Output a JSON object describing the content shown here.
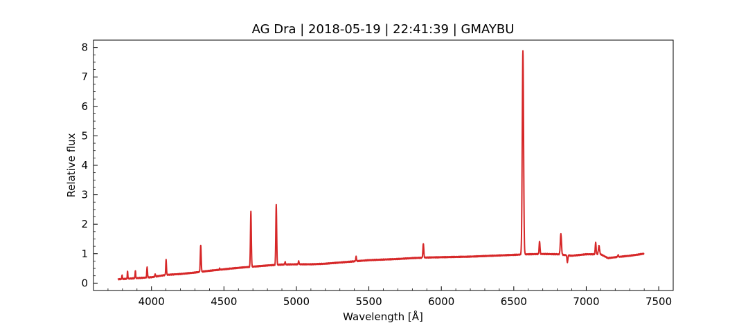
{
  "chart_data": {
    "type": "line",
    "title": "AG Dra | 2018-05-19 | 22:41:39 | GMAYBU",
    "xlabel": "Wavelength [Å]",
    "ylabel": "Relative flux",
    "xlim": [
      3600,
      7600
    ],
    "ylim": [
      -0.25,
      8.25
    ],
    "x_ticks": [
      4000,
      4500,
      5000,
      5500,
      6000,
      6500,
      7000,
      7500
    ],
    "y_ticks": [
      0,
      1,
      2,
      3,
      4,
      5,
      6,
      7,
      8
    ],
    "grid": false,
    "line_color": "#d62728",
    "series": [
      {
        "wavelength_range": [
          3770,
          7400
        ],
        "continuum": [
          [
            3770,
            0.13
          ],
          [
            3900,
            0.17
          ],
          [
            4000,
            0.2
          ],
          [
            4100,
            0.28
          ],
          [
            4200,
            0.31
          ],
          [
            4300,
            0.36
          ],
          [
            4400,
            0.42
          ],
          [
            4500,
            0.47
          ],
          [
            4600,
            0.52
          ],
          [
            4700,
            0.56
          ],
          [
            4800,
            0.6
          ],
          [
            4900,
            0.63
          ],
          [
            5000,
            0.64
          ],
          [
            5100,
            0.64
          ],
          [
            5200,
            0.66
          ],
          [
            5300,
            0.7
          ],
          [
            5400,
            0.74
          ],
          [
            5500,
            0.78
          ],
          [
            5600,
            0.8
          ],
          [
            5700,
            0.82
          ],
          [
            5800,
            0.85
          ],
          [
            5900,
            0.87
          ],
          [
            6000,
            0.88
          ],
          [
            6100,
            0.89
          ],
          [
            6200,
            0.9
          ],
          [
            6300,
            0.92
          ],
          [
            6400,
            0.94
          ],
          [
            6500,
            0.96
          ],
          [
            6600,
            0.98
          ],
          [
            6700,
            0.99
          ],
          [
            6800,
            0.98
          ],
          [
            6900,
            0.93
          ],
          [
            7000,
            0.98
          ],
          [
            7100,
            0.98
          ],
          [
            7150,
            0.85
          ],
          [
            7200,
            0.88
          ],
          [
            7300,
            0.93
          ],
          [
            7400,
            1.0
          ]
        ],
        "lines": [
          {
            "center": 3797,
            "peak": 0.28,
            "width": 2
          },
          {
            "center": 3835,
            "peak": 0.4,
            "width": 2
          },
          {
            "center": 3889,
            "peak": 0.42,
            "width": 2.2
          },
          {
            "center": 3970,
            "peak": 0.55,
            "width": 2.5
          },
          {
            "center": 4026,
            "peak": 0.32,
            "width": 2
          },
          {
            "center": 4101,
            "peak": 0.79,
            "width": 2.5
          },
          {
            "center": 4340,
            "peak": 1.3,
            "width": 3
          },
          {
            "center": 4471,
            "peak": 0.5,
            "width": 2
          },
          {
            "center": 4541,
            "peak": 0.5,
            "width": 2
          },
          {
            "center": 4686,
            "peak": 2.42,
            "width": 3
          },
          {
            "center": 4861,
            "peak": 2.65,
            "width": 3
          },
          {
            "center": 4922,
            "peak": 0.72,
            "width": 2.5
          },
          {
            "center": 5016,
            "peak": 0.75,
            "width": 2.5
          },
          {
            "center": 5412,
            "peak": 0.9,
            "width": 2.5
          },
          {
            "center": 5876,
            "peak": 1.35,
            "width": 3
          },
          {
            "center": 6563,
            "peak": 7.88,
            "width": 4.5
          },
          {
            "center": 6678,
            "peak": 1.42,
            "width": 3
          },
          {
            "center": 6825,
            "peak": 1.68,
            "width": 4
          },
          {
            "center": 6870,
            "peak": 0.7,
            "width": 3
          },
          {
            "center": 7065,
            "peak": 1.38,
            "width": 3
          },
          {
            "center": 7088,
            "peak": 1.27,
            "width": 4
          },
          {
            "center": 7220,
            "peak": 0.95,
            "width": 3
          }
        ]
      }
    ]
  }
}
